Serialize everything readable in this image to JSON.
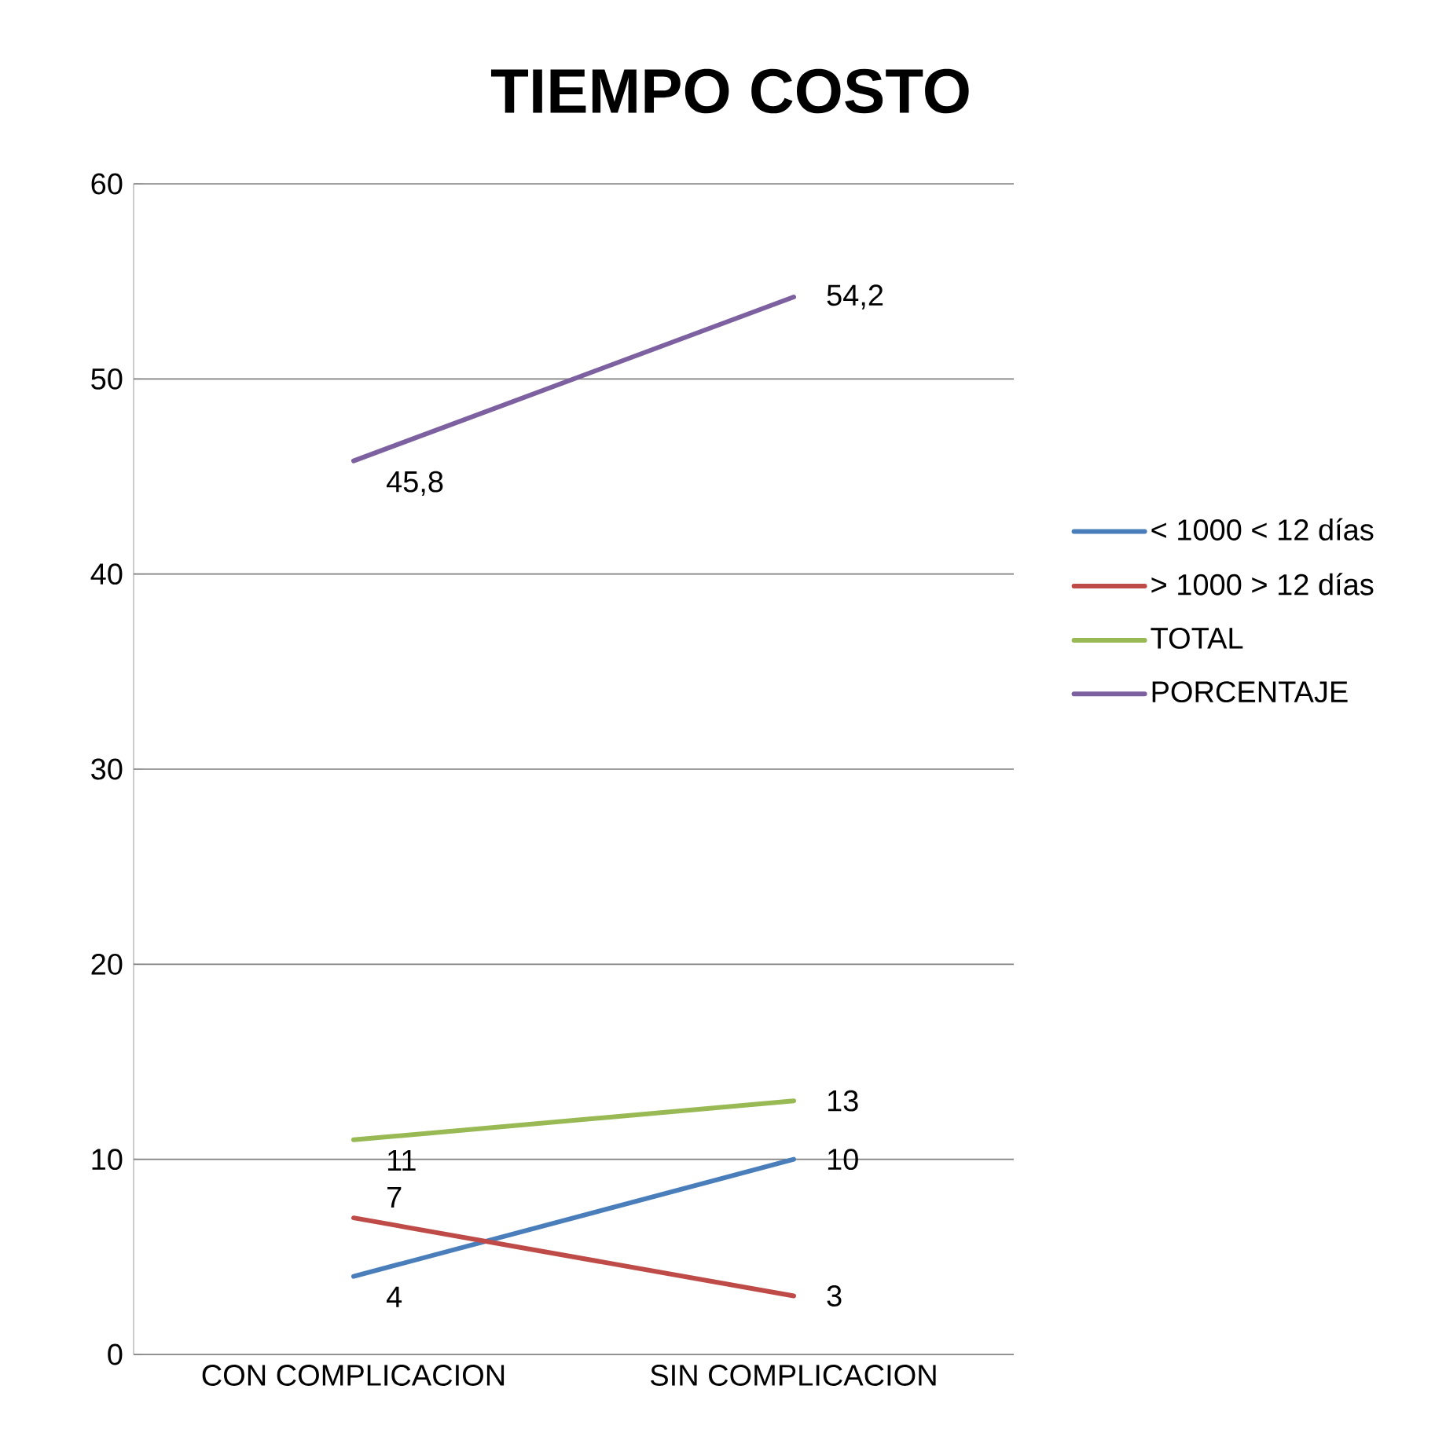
{
  "chart_data": {
    "type": "line",
    "title": "TIEMPO COSTO",
    "categories": [
      "CON COMPLICACION",
      "SIN COMPLICACION"
    ],
    "series": [
      {
        "name": "< 1000 < 12 días",
        "color": "#4a7ebb",
        "values": [
          4,
          10
        ],
        "value_labels": [
          "4",
          "10"
        ]
      },
      {
        "name": "> 1000 > 12 días",
        "color": "#be4b48",
        "values": [
          7,
          3
        ],
        "value_labels": [
          "7",
          "3"
        ]
      },
      {
        "name": "TOTAL",
        "color": "#98b954",
        "values": [
          11,
          13
        ],
        "value_labels": [
          "11",
          "13"
        ]
      },
      {
        "name": "PORCENTAJE",
        "color": "#7d60a0",
        "values": [
          45.8,
          54.2
        ],
        "value_labels": [
          "45,8",
          "54,2"
        ]
      }
    ],
    "ylim": [
      0,
      60
    ],
    "yticks": [
      0,
      10,
      20,
      30,
      40,
      50,
      60
    ],
    "grid": "y",
    "legend": "right"
  }
}
